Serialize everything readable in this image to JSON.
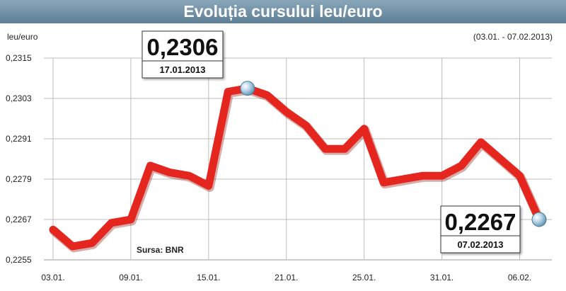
{
  "chart_data": {
    "type": "line",
    "title": "Evoluția cursului leu/euro",
    "ylabel": "leu/euro",
    "period": "(03.01. - 07.02.2013)",
    "source": "Sursa: BNR",
    "ylim": [
      0.2255,
      0.2315
    ],
    "y_ticks": [
      "0,2255",
      "0,2267",
      "0,2279",
      "0,2291",
      "0,2303",
      "0,2315"
    ],
    "x_ticks": [
      "03.01.",
      "09.01.",
      "15.01.",
      "21.01.",
      "25.01.",
      "31.01.",
      "06.02."
    ],
    "grid": true,
    "series": [
      {
        "color": "#e5261f",
        "x": [
          "03.01.",
          "04.01.",
          "07.01.",
          "08.01.",
          "09.01.",
          "10.01.",
          "11.01.",
          "14.01.",
          "15.01.",
          "16.01.",
          "17.01.",
          "18.01.",
          "21.01.",
          "22.01.",
          "23.01.",
          "24.01.",
          "25.01.",
          "28.01.",
          "29.01.",
          "30.01.",
          "31.01.",
          "01.02.",
          "04.02.",
          "05.02.",
          "06.02.",
          "07.02."
        ],
        "values": [
          0.2264,
          0.2259,
          0.226,
          0.2266,
          0.2267,
          0.2283,
          0.2281,
          0.228,
          0.2277,
          0.2305,
          0.2306,
          0.2304,
          0.2299,
          0.2295,
          0.2288,
          0.2288,
          0.2294,
          0.2278,
          0.2279,
          0.228,
          0.228,
          0.2283,
          0.229,
          0.2285,
          0.228,
          0.2267
        ]
      }
    ],
    "callouts": [
      {
        "value": "0,2306",
        "date": "17.01.2013"
      },
      {
        "value": "0,2267",
        "date": "07.02.2013"
      }
    ],
    "colors": {
      "title_bar": "#6e8fa6",
      "grid": "#bdbdbd",
      "line": "#e5261f",
      "marker": "#a9c9de"
    }
  }
}
